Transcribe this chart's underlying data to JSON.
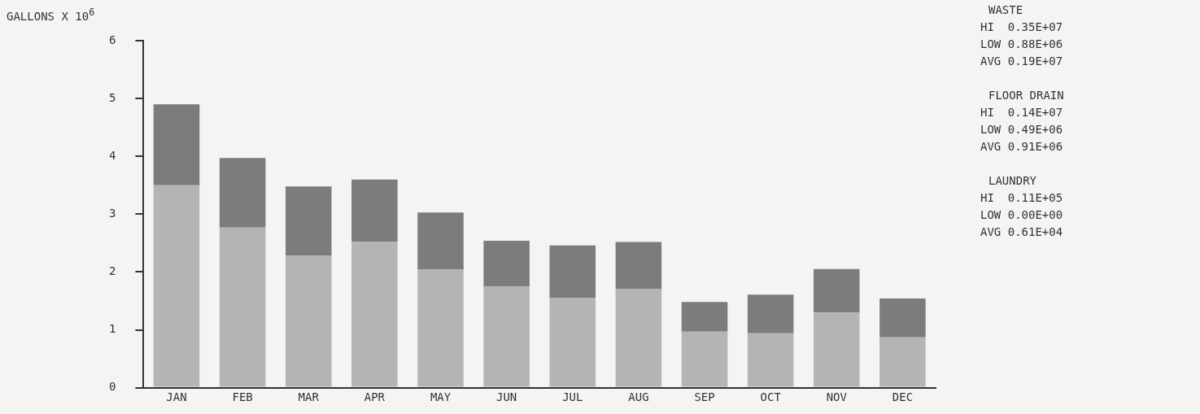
{
  "chart_data": {
    "type": "bar",
    "stacked": true,
    "ylabel": "GALLONS X 10$^{6}$",
    "categories": [
      "JAN",
      "FEB",
      "MAR",
      "APR",
      "MAY",
      "JUN",
      "JUL",
      "AUG",
      "SEP",
      "OCT",
      "NOV",
      "DEC"
    ],
    "series": [
      {
        "color": "#b4b4b4",
        "values": [
          3.5,
          2.77,
          2.28,
          2.52,
          2.04,
          1.75,
          1.55,
          1.71,
          0.97,
          0.94,
          1.3,
          0.87
        ]
      },
      {
        "color": "#7c7c7c",
        "values": [
          1.4,
          1.2,
          1.2,
          1.08,
          0.99,
          0.79,
          0.91,
          0.81,
          0.51,
          0.67,
          0.75,
          0.67
        ]
      }
    ],
    "ylim": [
      0,
      6
    ],
    "yticks": [
      0,
      1,
      2,
      3,
      4,
      5,
      6
    ],
    "grid": false,
    "legend": false,
    "annotations": [
      "WASTE",
      "HI  0.35E+07",
      "LOW 0.88E+06",
      "AVG 0.19E+07",
      "FLOOR DRAIN",
      "HI  0.14E+07",
      "LOW 0.49E+06",
      "AVG 0.91E+06",
      "LAUNDRY",
      "HI  0.11E+05",
      "LOW 0.00E+00",
      "AVG 0.61E+04"
    ]
  }
}
